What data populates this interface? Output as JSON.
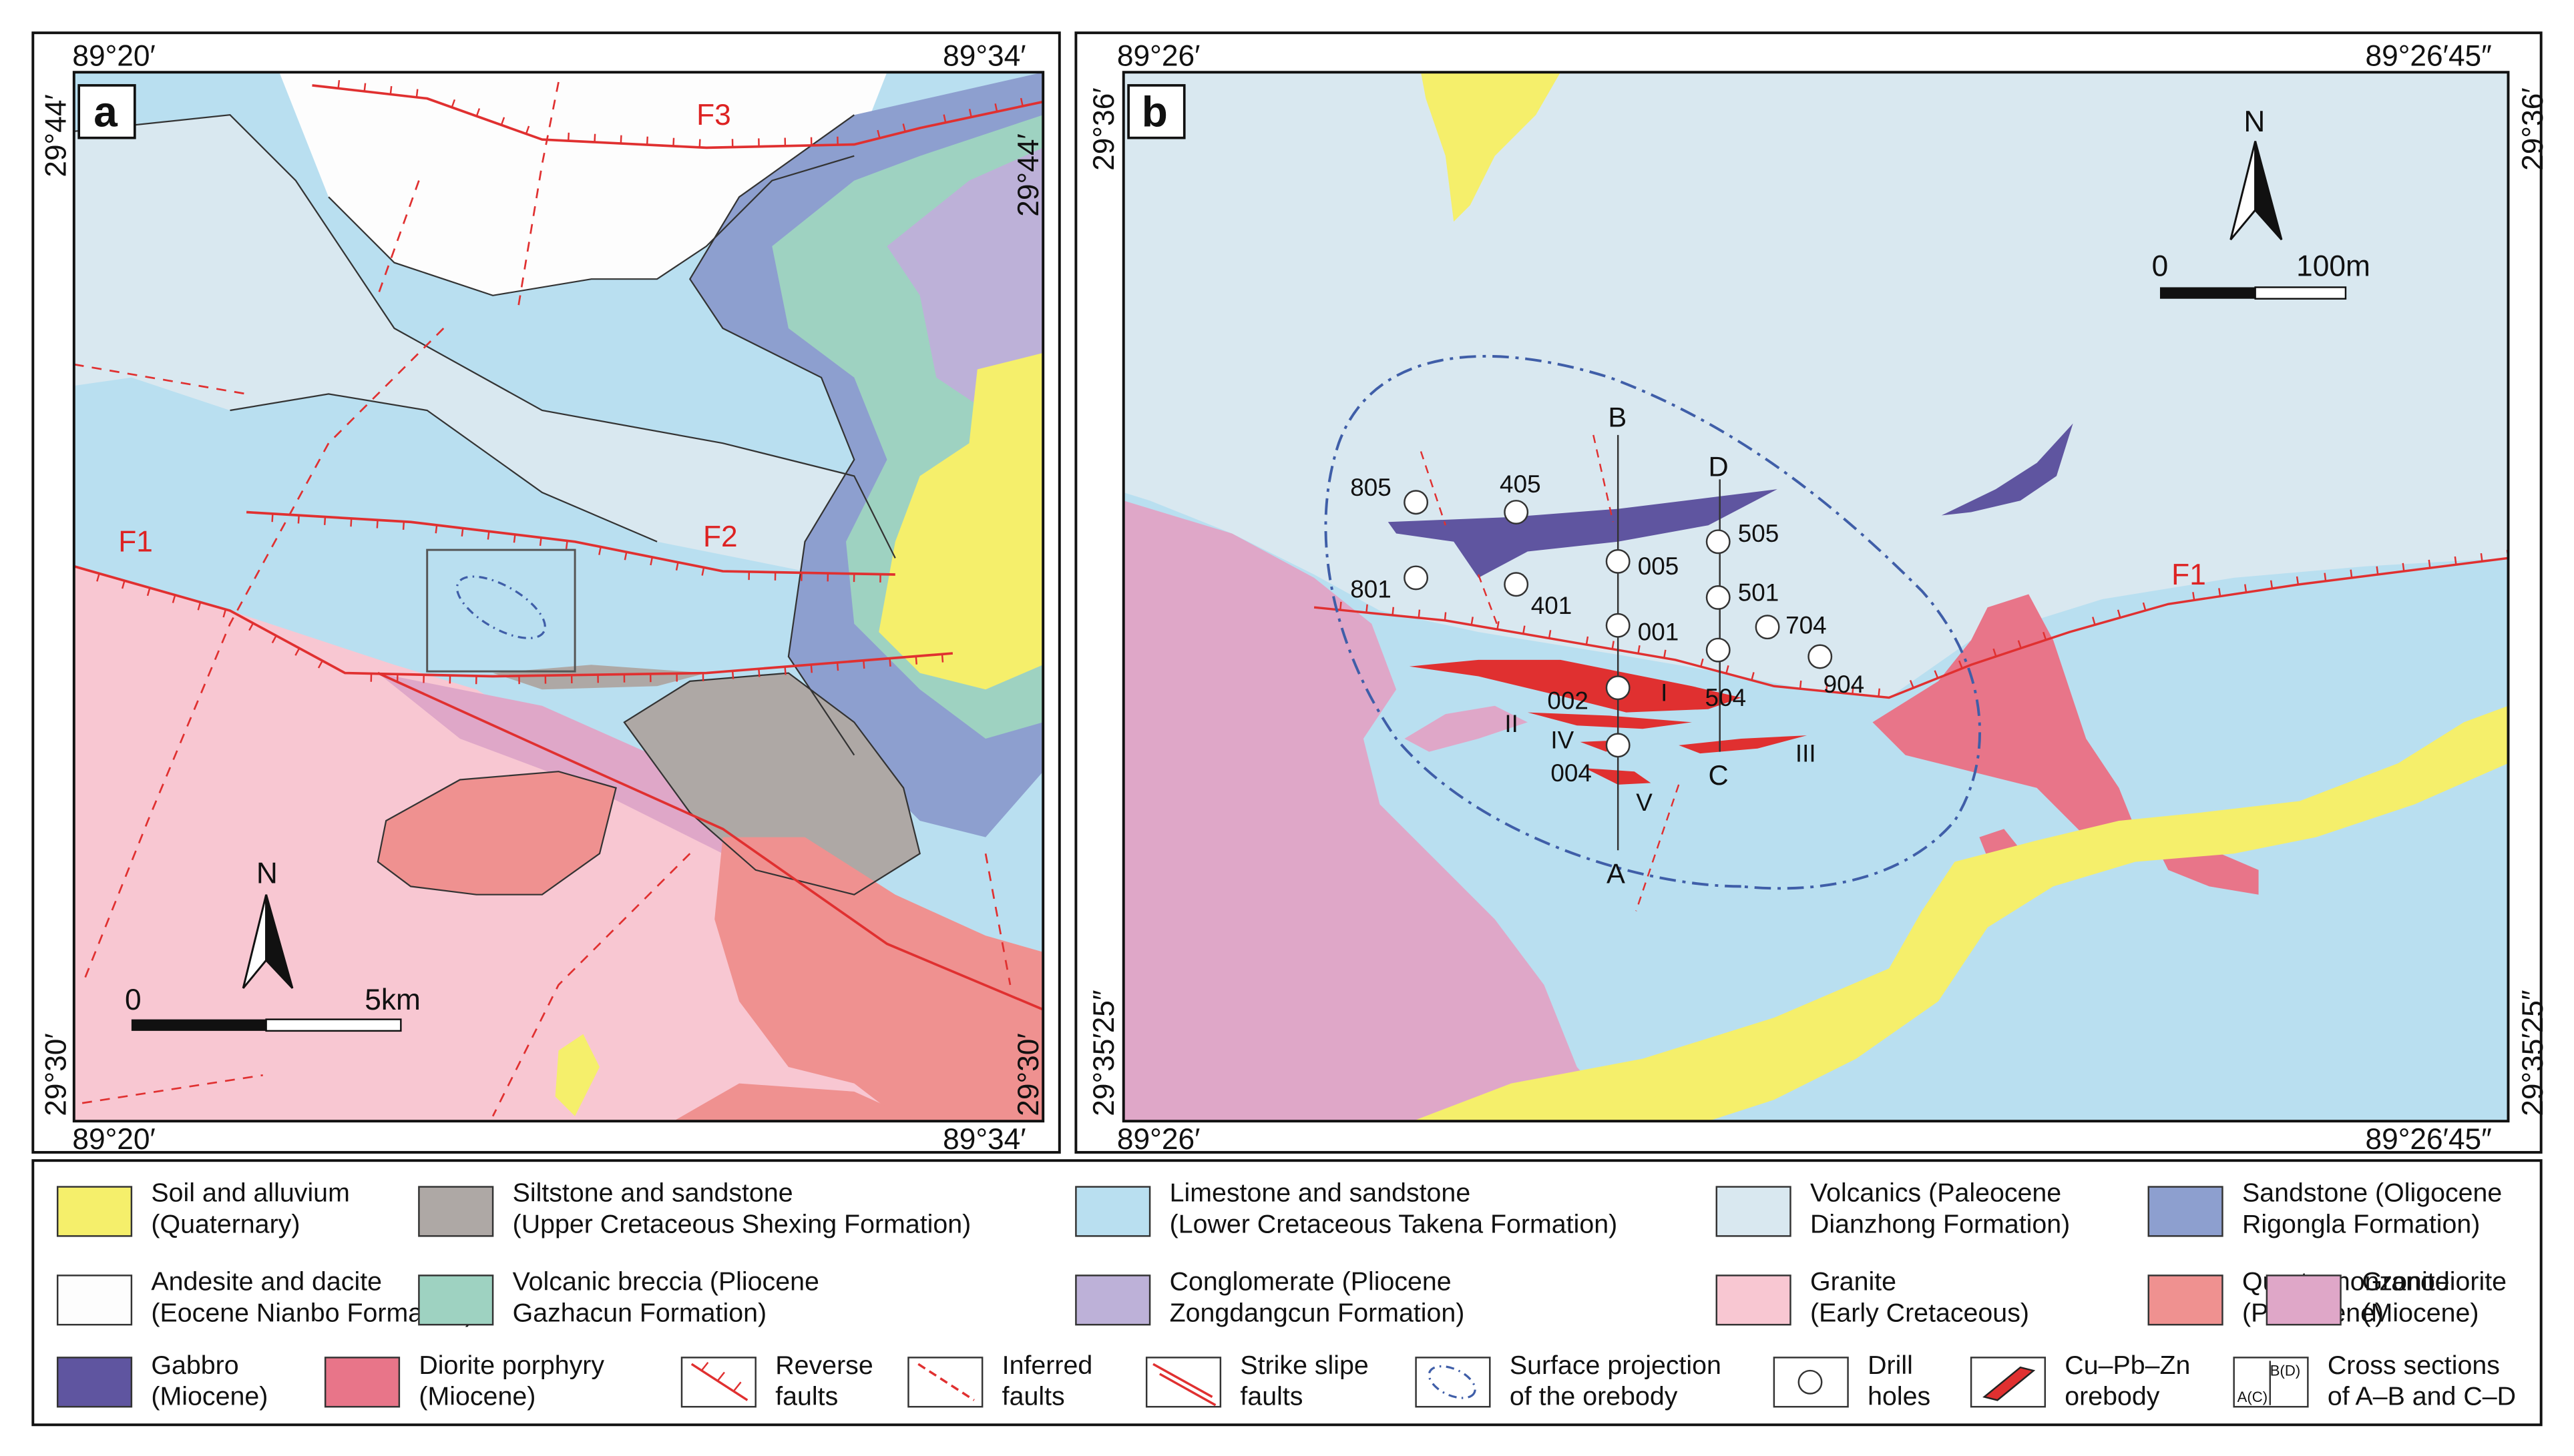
{
  "panel_a": {
    "label": "a",
    "coords": {
      "top_left": "89°20′",
      "top_right": "89°34′",
      "bottom_left": "89°20′",
      "bottom_right": "89°34′",
      "left_top": "29°44′",
      "right_top": "29°44′",
      "left_bottom": "29°30′",
      "right_bottom": "29°30′"
    },
    "faults": {
      "f1": "F1",
      "f2": "F2",
      "f3": "F3"
    },
    "north": "N",
    "scale": {
      "zero": "0",
      "end": "5km"
    }
  },
  "panel_b": {
    "label": "b",
    "coords": {
      "top_left": "89°26′",
      "top_right": "89°26′45″",
      "bottom_left": "89°26′",
      "bottom_right": "89°26′45″",
      "left_top": "29°36′",
      "right_top": "29°36′",
      "left_bottom": "29°35′25″",
      "right_bottom": "29°35′25″"
    },
    "north": "N",
    "scale": {
      "zero": "0",
      "end": "100m"
    },
    "fault": "F1",
    "sections": {
      "a": "A",
      "b": "B",
      "c": "C",
      "d": "D"
    },
    "holes": [
      "805",
      "405",
      "801",
      "401",
      "005",
      "001",
      "002",
      "004",
      "505",
      "501",
      "504",
      "704",
      "904"
    ],
    "orebodies": {
      "i": "I",
      "ii": "II",
      "iii": "III",
      "iv": "IV",
      "v": "V"
    }
  },
  "legend": {
    "items": [
      [
        "Soil and alluvium",
        "(Quaternary)"
      ],
      [
        "Siltstone and sandstone",
        "(Upper Cretaceous Shexing Formation)"
      ],
      [
        "Limestone and sandstone",
        "(Lower Cretaceous Takena Formation)"
      ],
      [
        "Volcanics (Paleocene",
        "Dianzhong Formation)"
      ],
      [
        "Sandstone (Oligocene",
        "Rigongla Formation)"
      ],
      [
        "Andesite and dacite",
        "(Eocene Nianbo Formation)"
      ],
      [
        "Volcanic breccia (Pliocene",
        "Gazhacun Formation)"
      ],
      [
        "Conglomerate (Pliocene",
        "Zongdangcun Formation)"
      ],
      [
        "Granite",
        "(Early Cretaceous)"
      ],
      [
        "Quartz monzonite",
        "(Paleocene)"
      ],
      [
        "Granodiorite",
        "(Miocene)"
      ],
      [
        "Gabbro",
        "(Miocene)"
      ],
      [
        "Diorite porphyry",
        "(Miocene)"
      ],
      [
        "Reverse",
        "faults"
      ],
      [
        "Inferred",
        "faults"
      ],
      [
        "Strike slipe",
        "faults"
      ],
      [
        "Surface projection",
        "of the orebody"
      ],
      [
        "Drill",
        "holes"
      ],
      [
        "Cu–Pb–Zn",
        "orebody"
      ],
      [
        "Cross sections",
        "of A–B and C–D"
      ]
    ],
    "swatch_text": {
      "top": "B(D)",
      "bottom": "A(C)"
    }
  },
  "colors": {
    "soil": "#f5ef6b",
    "siltstone": "#aea8a5",
    "limestone": "#b9dff0",
    "volcanics": "#d9e8f0",
    "sandstone": "#8d9fcf",
    "andesite": "#fdfdfd",
    "breccia": "#9ed2c1",
    "conglomerate": "#bdb1d8",
    "granite": "#f8c7d2",
    "monzonite": "#ef9190",
    "granodiorite": "#dfa7c8",
    "gabbro": "#5f55a0",
    "diorite": "#e87589",
    "fault": "#e03030",
    "outline": "#3f5ea8"
  }
}
